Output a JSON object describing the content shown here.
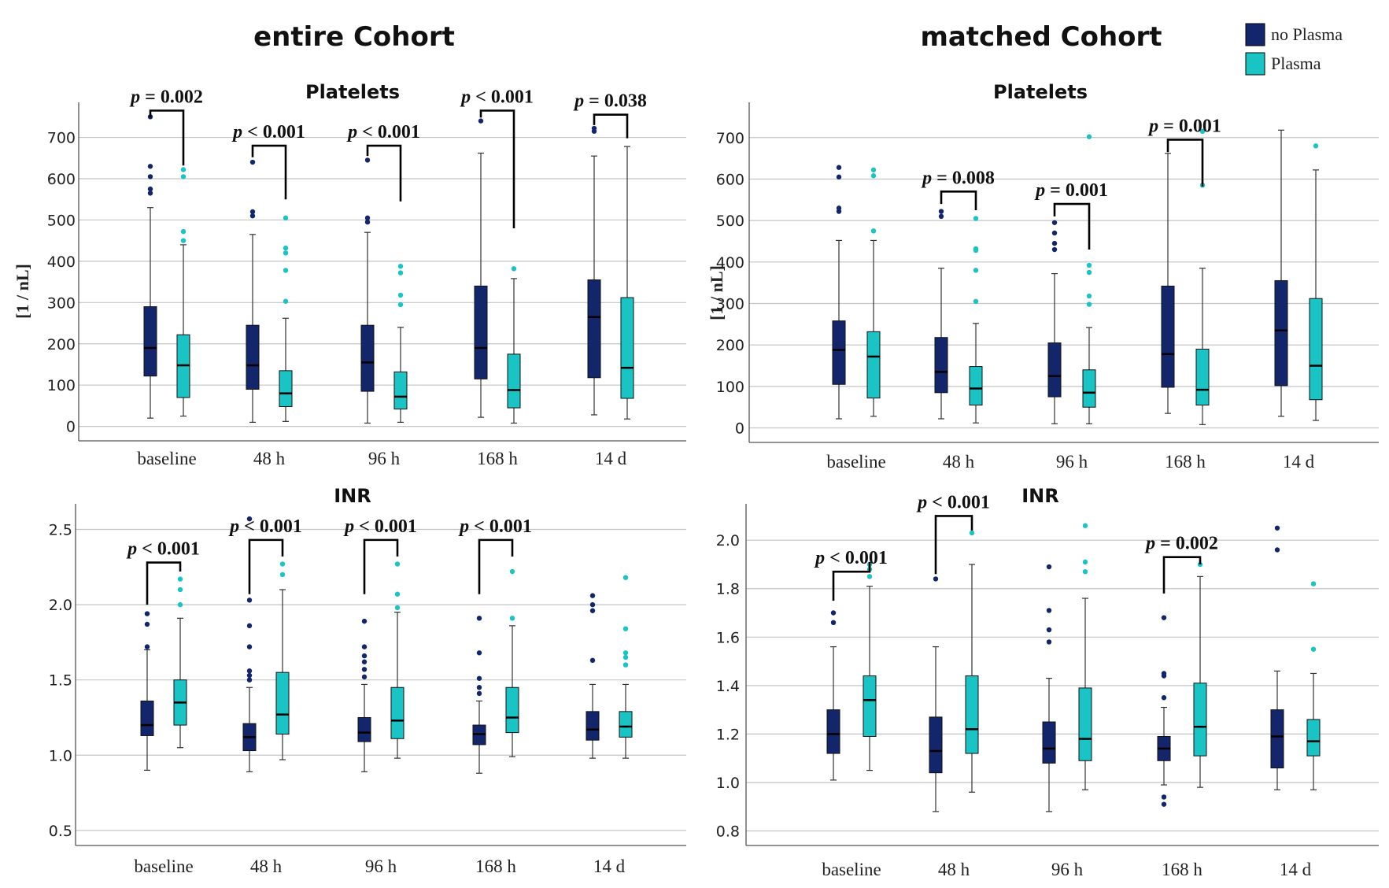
{
  "colors": {
    "no_plasma": "#14266b",
    "plasma": "#1bc4c4"
  },
  "cohort_titles": {
    "left": "entire Cohort",
    "right": "matched Cohort"
  },
  "legend": [
    {
      "label": "no Plasma",
      "color": "#14266b"
    },
    {
      "label": "Plasma",
      "color": "#1bc4c4"
    }
  ],
  "chart_data": [
    {
      "id": "entire-platelets",
      "type": "box",
      "cohort": "entire Cohort",
      "title": "Platelets",
      "ylabel": "[1 / nL]",
      "ylim": [
        -35,
        785
      ],
      "yticks": [
        0,
        100,
        200,
        300,
        400,
        500,
        600,
        700
      ],
      "categories": [
        "baseline",
        "48 h",
        "96 h",
        "168 h",
        "14 d"
      ],
      "series": [
        {
          "name": "no Plasma",
          "boxes": [
            {
              "low": 20,
              "q1": 122,
              "median": 190,
              "q3": 290,
              "high": 530,
              "outliers": [
                565,
                575,
                605,
                630,
                750
              ]
            },
            {
              "low": 10,
              "q1": 90,
              "median": 148,
              "q3": 245,
              "high": 465,
              "outliers": [
                510,
                520,
                640
              ]
            },
            {
              "low": 8,
              "q1": 85,
              "median": 155,
              "q3": 245,
              "high": 470,
              "outliers": [
                495,
                505,
                645
              ]
            },
            {
              "low": 22,
              "q1": 115,
              "median": 190,
              "q3": 340,
              "high": 662,
              "outliers": [
                740
              ]
            },
            {
              "low": 28,
              "q1": 118,
              "median": 265,
              "q3": 355,
              "high": 655,
              "outliers": [
                715,
                722
              ]
            }
          ]
        },
        {
          "name": "Plasma",
          "boxes": [
            {
              "low": 25,
              "q1": 70,
              "median": 148,
              "q3": 222,
              "high": 440,
              "outliers": [
                450,
                472,
                605,
                622
              ]
            },
            {
              "low": 12,
              "q1": 48,
              "median": 80,
              "q3": 135,
              "high": 262,
              "outliers": [
                303,
                378,
                420,
                432,
                505
              ]
            },
            {
              "low": 10,
              "q1": 42,
              "median": 72,
              "q3": 132,
              "high": 240,
              "outliers": [
                295,
                318,
                372,
                388
              ]
            },
            {
              "low": 8,
              "q1": 45,
              "median": 88,
              "q3": 175,
              "high": 358,
              "outliers": [
                382
              ]
            },
            {
              "low": 18,
              "q1": 68,
              "median": 142,
              "q3": 312,
              "high": 678,
              "outliers": []
            }
          ]
        }
      ],
      "brackets": [
        {
          "category": 0,
          "p": "p",
          "rest": " = 0.002",
          "top": 765,
          "left_end": 748,
          "right_end": 632
        },
        {
          "category": 1,
          "p": "p",
          "rest": " < 0.001",
          "top": 680,
          "left_end": 652,
          "right_end": 550
        },
        {
          "category": 2,
          "p": "p",
          "rest": " < 0.001",
          "top": 680,
          "left_end": 655,
          "right_end": 545
        },
        {
          "category": 3,
          "p": "p",
          "rest": " < 0.001",
          "top": 765,
          "left_end": 748,
          "right_end": 480
        },
        {
          "category": 4,
          "p": "p",
          "rest": " = 0.038",
          "top": 755,
          "left_end": 730,
          "right_end": 698
        }
      ]
    },
    {
      "id": "matched-platelets",
      "type": "box",
      "cohort": "matched Cohort",
      "title": "Platelets",
      "ylabel": "[1 / nL]",
      "ylim": [
        -35,
        785
      ],
      "yticks": [
        0,
        100,
        200,
        300,
        400,
        500,
        600,
        700
      ],
      "categories": [
        "baseline",
        "48 h",
        "96 h",
        "168 h",
        "14 d"
      ],
      "series": [
        {
          "name": "no Plasma",
          "boxes": [
            {
              "low": 22,
              "q1": 105,
              "median": 188,
              "q3": 258,
              "high": 452,
              "outliers": [
                522,
                530,
                605,
                628
              ]
            },
            {
              "low": 22,
              "q1": 85,
              "median": 135,
              "q3": 218,
              "high": 385,
              "outliers": [
                510,
                522
              ]
            },
            {
              "low": 10,
              "q1": 75,
              "median": 125,
              "q3": 205,
              "high": 372,
              "outliers": [
                430,
                445,
                470,
                495
              ]
            },
            {
              "low": 35,
              "q1": 98,
              "median": 178,
              "q3": 342,
              "high": 662,
              "outliers": []
            },
            {
              "low": 28,
              "q1": 102,
              "median": 235,
              "q3": 355,
              "high": 718,
              "outliers": []
            }
          ]
        },
        {
          "name": "Plasma",
          "boxes": [
            {
              "low": 28,
              "q1": 72,
              "median": 172,
              "q3": 232,
              "high": 452,
              "outliers": [
                475,
                608,
                622
              ]
            },
            {
              "low": 12,
              "q1": 55,
              "median": 95,
              "q3": 148,
              "high": 252,
              "outliers": [
                305,
                380,
                428,
                432,
                505
              ]
            },
            {
              "low": 10,
              "q1": 50,
              "median": 85,
              "q3": 140,
              "high": 242,
              "outliers": [
                298,
                318,
                375,
                392,
                702
              ]
            },
            {
              "low": 8,
              "q1": 55,
              "median": 92,
              "q3": 190,
              "high": 385,
              "outliers": [
                585,
                715
              ]
            },
            {
              "low": 18,
              "q1": 68,
              "median": 150,
              "q3": 312,
              "high": 622,
              "outliers": [
                680
              ]
            }
          ]
        }
      ],
      "brackets": [
        {
          "category": 1,
          "p": "p",
          "rest": " = 0.008",
          "top": 570,
          "left_end": 540,
          "right_end": 525
        },
        {
          "category": 2,
          "p": "p",
          "rest": " = 0.001",
          "top": 540,
          "left_end": 510,
          "right_end": 430
        },
        {
          "category": 3,
          "p": "p",
          "rest": " = 0.001",
          "top": 695,
          "left_end": 665,
          "right_end": 582
        }
      ]
    },
    {
      "id": "entire-inr",
      "type": "box",
      "cohort": "entire Cohort",
      "title": "INR",
      "ylabel": "",
      "ylim": [
        0.4,
        2.67
      ],
      "yticks": [
        0.5,
        1.0,
        1.5,
        2.0,
        2.5
      ],
      "categories": [
        "baseline",
        "48 h",
        "96 h",
        "168 h",
        "14 d"
      ],
      "series": [
        {
          "name": "no Plasma",
          "boxes": [
            {
              "low": 0.9,
              "q1": 1.13,
              "median": 1.2,
              "q3": 1.36,
              "high": 1.7,
              "outliers": [
                1.72,
                1.87,
                1.94
              ]
            },
            {
              "low": 0.89,
              "q1": 1.03,
              "median": 1.12,
              "q3": 1.21,
              "high": 1.45,
              "outliers": [
                1.5,
                1.53,
                1.56,
                1.72,
                1.86,
                2.03,
                2.57
              ]
            },
            {
              "low": 0.89,
              "q1": 1.09,
              "median": 1.15,
              "q3": 1.25,
              "high": 1.47,
              "outliers": [
                1.52,
                1.57,
                1.62,
                1.66,
                1.72,
                1.89
              ]
            },
            {
              "low": 0.88,
              "q1": 1.07,
              "median": 1.14,
              "q3": 1.2,
              "high": 1.36,
              "outliers": [
                1.41,
                1.45,
                1.51,
                1.68,
                1.91
              ]
            },
            {
              "low": 0.98,
              "q1": 1.1,
              "median": 1.17,
              "q3": 1.29,
              "high": 1.47,
              "outliers": [
                1.63,
                1.96,
                2.0,
                2.06
              ]
            }
          ]
        },
        {
          "name": "Plasma",
          "boxes": [
            {
              "low": 1.05,
              "q1": 1.2,
              "median": 1.35,
              "q3": 1.5,
              "high": 1.91,
              "outliers": [
                2.0,
                2.1,
                2.17
              ]
            },
            {
              "low": 0.97,
              "q1": 1.14,
              "median": 1.27,
              "q3": 1.55,
              "high": 2.1,
              "outliers": [
                2.2,
                2.27
              ]
            },
            {
              "low": 0.98,
              "q1": 1.11,
              "median": 1.23,
              "q3": 1.45,
              "high": 1.95,
              "outliers": [
                1.98,
                2.07,
                2.27
              ]
            },
            {
              "low": 0.99,
              "q1": 1.15,
              "median": 1.25,
              "q3": 1.45,
              "high": 1.86,
              "outliers": [
                1.91,
                2.22
              ]
            },
            {
              "low": 0.98,
              "q1": 1.12,
              "median": 1.19,
              "q3": 1.29,
              "high": 1.47,
              "outliers": [
                1.6,
                1.65,
                1.68,
                1.84,
                2.18
              ]
            }
          ]
        }
      ],
      "brackets": [
        {
          "category": 0,
          "p": "p",
          "rest": " < 0.001",
          "top": 2.28,
          "left_end": 2.0,
          "right_end": 2.22
        },
        {
          "category": 1,
          "p": "p",
          "rest": " < 0.001",
          "top": 2.43,
          "left_end": 2.07,
          "right_end": 2.32
        },
        {
          "category": 2,
          "p": "p",
          "rest": " < 0.001",
          "top": 2.43,
          "left_end": 2.07,
          "right_end": 2.32
        },
        {
          "category": 3,
          "p": "p",
          "rest": " < 0.001",
          "top": 2.43,
          "left_end": 2.07,
          "right_end": 2.32
        }
      ]
    },
    {
      "id": "matched-inr",
      "type": "box",
      "cohort": "matched Cohort",
      "title": "INR",
      "ylabel": "",
      "ylim": [
        0.74,
        2.15
      ],
      "yticks": [
        0.8,
        1.0,
        1.2,
        1.4,
        1.6,
        1.8,
        2.0
      ],
      "categories": [
        "baseline",
        "48 h",
        "96 h",
        "168 h",
        "14 d"
      ],
      "series": [
        {
          "name": "no Plasma",
          "boxes": [
            {
              "low": 1.01,
              "q1": 1.12,
              "median": 1.2,
              "q3": 1.3,
              "high": 1.56,
              "outliers": [
                1.66,
                1.7
              ]
            },
            {
              "low": 0.88,
              "q1": 1.04,
              "median": 1.13,
              "q3": 1.27,
              "high": 1.56,
              "outliers": [
                1.84
              ]
            },
            {
              "low": 0.88,
              "q1": 1.08,
              "median": 1.14,
              "q3": 1.25,
              "high": 1.43,
              "outliers": [
                1.58,
                1.63,
                1.71,
                1.89
              ]
            },
            {
              "low": 0.99,
              "q1": 1.09,
              "median": 1.14,
              "q3": 1.19,
              "high": 1.31,
              "outliers": [
                0.91,
                0.94,
                1.35,
                1.44,
                1.45,
                1.68
              ]
            },
            {
              "low": 0.97,
              "q1": 1.06,
              "median": 1.19,
              "q3": 1.3,
              "high": 1.46,
              "outliers": [
                1.96,
                2.05
              ]
            }
          ]
        },
        {
          "name": "Plasma",
          "boxes": [
            {
              "low": 1.05,
              "q1": 1.19,
              "median": 1.34,
              "q3": 1.44,
              "high": 1.81,
              "outliers": [
                1.85,
                1.88,
                1.9
              ]
            },
            {
              "low": 0.96,
              "q1": 1.12,
              "median": 1.22,
              "q3": 1.44,
              "high": 1.9,
              "outliers": [
                2.03
              ]
            },
            {
              "low": 0.97,
              "q1": 1.09,
              "median": 1.18,
              "q3": 1.39,
              "high": 1.76,
              "outliers": [
                1.87,
                1.91,
                2.06
              ]
            },
            {
              "low": 0.98,
              "q1": 1.11,
              "median": 1.23,
              "q3": 1.41,
              "high": 1.85,
              "outliers": [
                1.9
              ]
            },
            {
              "low": 0.97,
              "q1": 1.11,
              "median": 1.17,
              "q3": 1.26,
              "high": 1.45,
              "outliers": [
                1.55,
                1.82
              ]
            }
          ]
        }
      ],
      "brackets": [
        {
          "category": 0,
          "p": "p",
          "rest": " < 0.001",
          "top": 1.87,
          "left_end": 1.75,
          "right_end": 1.91
        },
        {
          "category": 1,
          "p": "p",
          "rest": " < 0.001",
          "top": 2.1,
          "left_end": 1.86,
          "right_end": 2.04
        },
        {
          "category": 3,
          "p": "p",
          "rest": " = 0.002",
          "top": 1.93,
          "left_end": 1.78,
          "right_end": 1.9
        }
      ]
    }
  ]
}
